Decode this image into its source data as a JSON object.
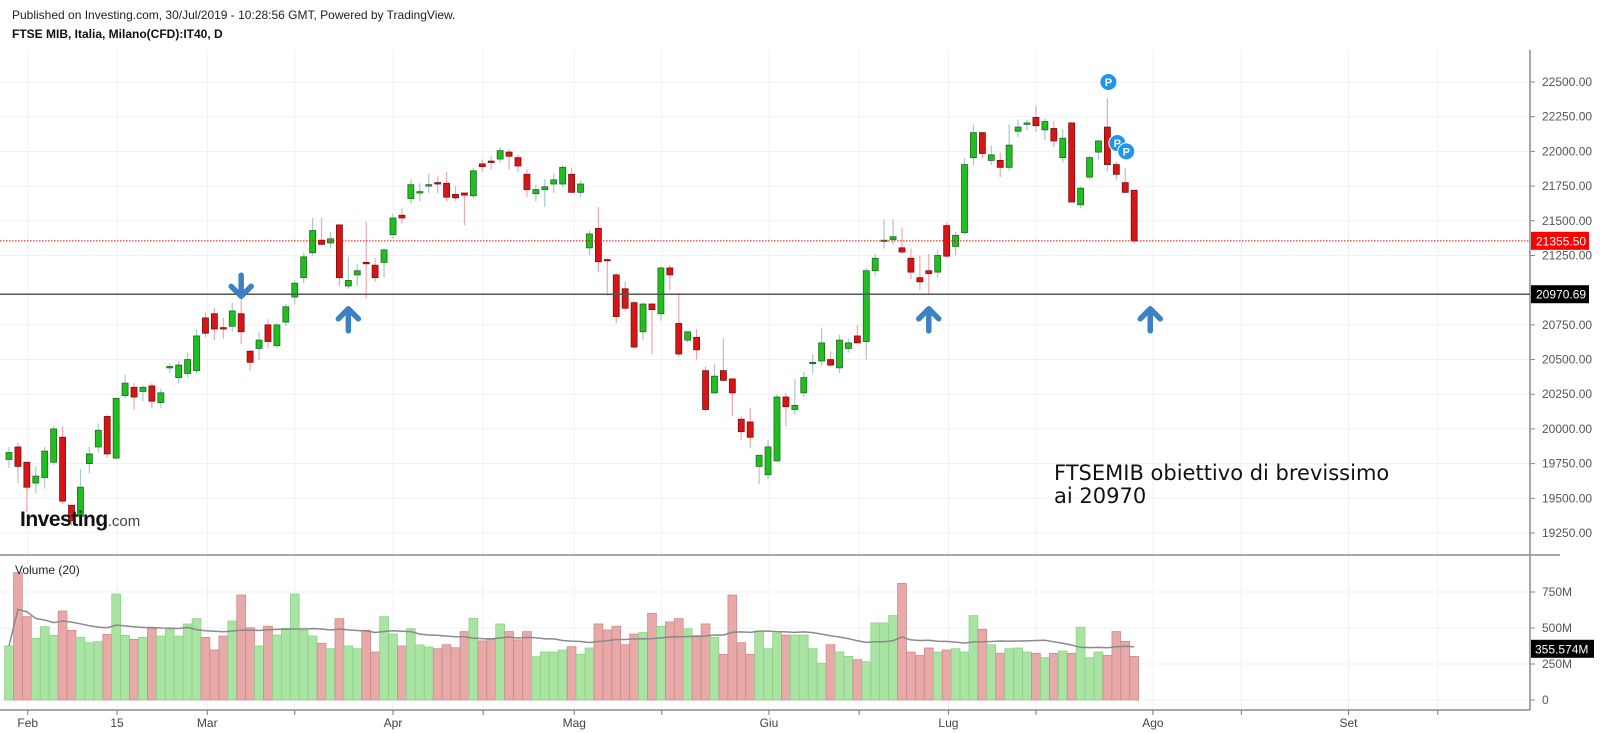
{
  "header": {
    "published": "Published on Investing.com, 30/Jul/2019 - 10:28:56 GMT, Powered by TradingView.",
    "symbol": "FTSE MIB, Italia, Milano(CFD):IT40, D"
  },
  "logo": {
    "brand": "Investing",
    "suffix": ".com"
  },
  "annotation": {
    "line1": "FTSEMIB obiettivo di brevissimo",
    "line2": "ai 20970"
  },
  "colors": {
    "up": "#1fbf1f",
    "down": "#d81515",
    "vol_up": "#a9e4a3",
    "vol_down": "#e8a9a9",
    "arrow": "#3c80c6",
    "marker": "#1e96f0",
    "last_price": "#ff0000",
    "level": "#000000"
  },
  "chart_data": {
    "type": "candlestick",
    "title": "FTSE MIB, Italia, Milano(CFD):IT40, D",
    "ylim": [
      19250,
      22500
    ],
    "y_ticks": [
      22500,
      22250,
      22000,
      21750,
      21500,
      21250,
      20750,
      20500,
      20250,
      20000,
      19750,
      19500,
      19250
    ],
    "y_tick_labels": [
      "22500.00",
      "22250.00",
      "22000.00",
      "21750.00",
      "21500.00",
      "21250.00",
      "20750.00",
      "20500.00",
      "20250.00",
      "20000.00",
      "19750.00",
      "19500.00",
      "19250.00"
    ],
    "x_ticks": [
      {
        "label": "Feb",
        "index": 2.1
      },
      {
        "label": "15",
        "index": 12.1
      },
      {
        "label": "Mar",
        "index": 22.2
      },
      {
        "label": "Apr",
        "index": 43.0
      },
      {
        "label": "Mag",
        "index": 63.3
      },
      {
        "label": "Giu",
        "index": 85.1
      },
      {
        "label": "Lug",
        "index": 105.2
      },
      {
        "label": "Ago",
        "index": 128.1
      },
      {
        "label": "Set",
        "index": 150.0
      }
    ],
    "x_minor_tick_indices": [
      32.0,
      53.1,
      73.1,
      95.2,
      115.0,
      138.0,
      160.0
    ],
    "ohlc_columns": [
      "open",
      "high",
      "low",
      "close"
    ],
    "ohlc": [
      [
        19780,
        19870,
        19720,
        19830
      ],
      [
        19870,
        19900,
        19610,
        19730
      ],
      [
        19760,
        19760,
        19400,
        19580
      ],
      [
        19610,
        19730,
        19540,
        19660
      ],
      [
        19650,
        19870,
        19570,
        19840
      ],
      [
        19760,
        20020,
        19740,
        20000
      ],
      [
        19940,
        20020,
        19460,
        19480
      ],
      [
        19450,
        19450,
        19300,
        19340
      ],
      [
        19370,
        19710,
        19350,
        19580
      ],
      [
        19750,
        19870,
        19680,
        19820
      ],
      [
        19870,
        20040,
        19830,
        19990
      ],
      [
        20090,
        20100,
        19790,
        19820
      ],
      [
        19790,
        20230,
        19780,
        20220
      ],
      [
        20240,
        20390,
        20220,
        20330
      ],
      [
        20300,
        20330,
        20140,
        20230
      ],
      [
        20270,
        20310,
        20200,
        20300
      ],
      [
        20310,
        20330,
        20150,
        20200
      ],
      [
        20190,
        20290,
        20150,
        20260
      ],
      [
        20440,
        20470,
        20400,
        20450
      ],
      [
        20370,
        20490,
        20330,
        20460
      ],
      [
        20400,
        20550,
        20370,
        20500
      ],
      [
        20420,
        20720,
        20400,
        20670
      ],
      [
        20800,
        20840,
        20660,
        20690
      ],
      [
        20830,
        20870,
        20640,
        20720
      ],
      [
        20730,
        20800,
        20650,
        20720
      ],
      [
        20740,
        20910,
        20700,
        20850
      ],
      [
        20830,
        21030,
        20610,
        20700
      ],
      [
        20560,
        20570,
        20420,
        20480
      ],
      [
        20580,
        20700,
        20500,
        20640
      ],
      [
        20750,
        20790,
        20580,
        20630
      ],
      [
        20600,
        20760,
        20580,
        20750
      ],
      [
        20770,
        20900,
        20740,
        20880
      ],
      [
        20950,
        21070,
        20900,
        21050
      ],
      [
        21090,
        21270,
        21050,
        21240
      ],
      [
        21270,
        21520,
        21250,
        21430
      ],
      [
        21360,
        21520,
        21320,
        21330
      ],
      [
        21340,
        21420,
        21300,
        21370
      ],
      [
        21470,
        21470,
        21030,
        21090
      ],
      [
        21030,
        21240,
        21010,
        21070
      ],
      [
        21110,
        21190,
        21030,
        21140
      ],
      [
        21200,
        21490,
        20940,
        21190
      ],
      [
        21180,
        21230,
        21060,
        21090
      ],
      [
        21200,
        21300,
        21090,
        21290
      ],
      [
        21400,
        21550,
        21370,
        21520
      ],
      [
        21540,
        21590,
        21480,
        21520
      ],
      [
        21660,
        21800,
        21620,
        21760
      ],
      [
        21700,
        21770,
        21640,
        21710
      ],
      [
        21750,
        21840,
        21700,
        21760
      ],
      [
        21775,
        21820,
        21700,
        21765
      ],
      [
        21770,
        21850,
        21640,
        21670
      ],
      [
        21690,
        21750,
        21640,
        21665
      ],
      [
        21700,
        21700,
        21470,
        21685
      ],
      [
        21680,
        21880,
        21660,
        21860
      ],
      [
        21910,
        21940,
        21850,
        21890
      ],
      [
        21930,
        21970,
        21870,
        21920
      ],
      [
        21945,
        22030,
        21920,
        22005
      ],
      [
        21995,
        22015,
        21870,
        21965
      ],
      [
        21955,
        21975,
        21850,
        21895
      ],
      [
        21835,
        21870,
        21670,
        21725
      ],
      [
        21695,
        21760,
        21640,
        21725
      ],
      [
        21725,
        21800,
        21600,
        21745
      ],
      [
        21765,
        21840,
        21700,
        21795
      ],
      [
        21765,
        21900,
        21740,
        21885
      ],
      [
        21835,
        21880,
        21700,
        21705
      ],
      [
        21705,
        21790,
        21670,
        21765
      ],
      [
        21305,
        21430,
        21250,
        21405
      ],
      [
        21445,
        21600,
        21130,
        21205
      ],
      [
        21220,
        21230,
        20960,
        21215
      ],
      [
        21110,
        21120,
        20760,
        20810
      ],
      [
        21010,
        21060,
        20850,
        20870
      ],
      [
        20910,
        20920,
        20580,
        20590
      ],
      [
        20700,
        20910,
        20640,
        20900
      ],
      [
        20900,
        20910,
        20540,
        20860
      ],
      [
        20830,
        21170,
        20780,
        21160
      ],
      [
        21160,
        21180,
        21000,
        21110
      ],
      [
        20760,
        20980,
        20520,
        20540
      ],
      [
        20640,
        20700,
        20620,
        20700
      ],
      [
        20660,
        20720,
        20500,
        20570
      ],
      [
        20420,
        20450,
        20130,
        20140
      ],
      [
        20260,
        20470,
        20250,
        20380
      ],
      [
        20420,
        20650,
        20340,
        20350
      ],
      [
        20360,
        20370,
        20090,
        20260
      ],
      [
        20070,
        20090,
        19920,
        19980
      ],
      [
        20050,
        20150,
        19860,
        19940
      ],
      [
        19730,
        19800,
        19600,
        19810
      ],
      [
        19670,
        19920,
        19640,
        19870
      ],
      [
        19770,
        20250,
        19760,
        20230
      ],
      [
        20230,
        20260,
        20020,
        20160
      ],
      [
        20140,
        20360,
        20100,
        20170
      ],
      [
        20260,
        20410,
        20230,
        20370
      ],
      [
        20470,
        20540,
        20400,
        20480
      ],
      [
        20490,
        20730,
        20450,
        20620
      ],
      [
        20500,
        20560,
        20450,
        20460
      ],
      [
        20440,
        20680,
        20400,
        20640
      ],
      [
        20580,
        20650,
        20550,
        20620
      ],
      [
        20670,
        20750,
        20620,
        20620
      ],
      [
        20630,
        21160,
        20500,
        21140
      ],
      [
        21140,
        21260,
        21100,
        21230
      ],
      [
        21355,
        21510,
        21300,
        21360
      ],
      [
        21365,
        21510,
        21330,
        21385
      ],
      [
        21305,
        21450,
        21260,
        21275
      ],
      [
        21230,
        21300,
        21080,
        21130
      ],
      [
        21090,
        21250,
        21000,
        21060
      ],
      [
        21140,
        21260,
        20970,
        21120
      ],
      [
        21130,
        21290,
        21090,
        21250
      ],
      [
        21465,
        21490,
        21230,
        21245
      ],
      [
        21315,
        21420,
        21250,
        21395
      ],
      [
        21415,
        21950,
        21400,
        21905
      ],
      [
        21955,
        22195,
        21900,
        22135
      ],
      [
        22135,
        22140,
        21950,
        21985
      ],
      [
        21935,
        22040,
        21900,
        21975
      ],
      [
        21935,
        21990,
        21815,
        21885
      ],
      [
        21885,
        22195,
        21860,
        22045
      ],
      [
        22145,
        22230,
        22100,
        22175
      ],
      [
        22195,
        22230,
        22150,
        22205
      ],
      [
        22245,
        22330,
        22140,
        22185
      ],
      [
        22155,
        22240,
        22080,
        22215
      ],
      [
        22165,
        22220,
        22030,
        22075
      ],
      [
        21955,
        22160,
        21920,
        22095
      ],
      [
        22205,
        22210,
        21635,
        21635
      ],
      [
        21615,
        21750,
        21590,
        21735
      ],
      [
        21815,
        21970,
        21800,
        21955
      ],
      [
        21995,
        22080,
        21940,
        22075
      ],
      [
        22175,
        22385,
        21855,
        21905
      ],
      [
        21905,
        21925,
        21790,
        21835
      ],
      [
        21775,
        21880,
        21700,
        21705
      ],
      [
        21720,
        21720,
        21340,
        21355.5
      ]
    ],
    "last_price": 21355.5,
    "last_price_label": "21355.50",
    "level_line": 20970.69,
    "level_label": "20970.69",
    "volume": {
      "label": "Volume (20)",
      "unit": "M",
      "ma_period": 20,
      "last_ma_label": "355.574M",
      "last_ma_value": 355.574,
      "ticks": [
        750,
        500,
        250,
        0
      ],
      "tick_labels": [
        "750M",
        "500M",
        "250M",
        "0"
      ],
      "values": [
        375,
        884,
        579,
        428,
        509,
        449,
        618,
        484,
        435,
        398,
        405,
        456,
        736,
        449,
        421,
        435,
        495,
        444,
        491,
        444,
        528,
        565,
        435,
        347,
        444,
        549,
        729,
        502,
        375,
        512,
        451,
        498,
        736,
        484,
        444,
        394,
        356,
        565,
        375,
        356,
        484,
        333,
        579,
        458,
        375,
        495,
        382,
        368,
        356,
        384,
        363,
        475,
        567,
        410,
        421,
        528,
        475,
        417,
        475,
        301,
        333,
        333,
        347,
        370,
        317,
        361,
        528,
        486,
        512,
        384,
        458,
        468,
        602,
        512,
        542,
        565,
        495,
        447,
        528,
        435,
        317,
        729,
        398,
        317,
        479,
        356,
        465,
        451,
        451,
        451,
        356,
        255,
        384,
        333,
        303,
        280,
        266,
        535,
        535,
        586,
        810,
        333,
        310,
        361,
        333,
        347,
        356,
        333,
        586,
        491,
        384,
        324,
        356,
        361,
        333,
        324,
        294,
        324,
        340,
        324,
        505,
        294,
        333,
        310,
        475,
        407,
        303
      ]
    },
    "markers": [
      {
        "label": "P",
        "index": 123,
        "price": 22500
      },
      {
        "label": "P",
        "index": 124,
        "price": 22060
      },
      {
        "label": "P",
        "index": 125,
        "price": 22000
      }
    ],
    "arrows": [
      {
        "direction": "down",
        "index": 26,
        "price": 21100
      },
      {
        "direction": "up",
        "index": 38,
        "price": 20880
      },
      {
        "direction": "up",
        "index": 103,
        "price": 20880
      },
      {
        "direction": "up",
        "index": 127.8,
        "price": 20880
      }
    ]
  }
}
